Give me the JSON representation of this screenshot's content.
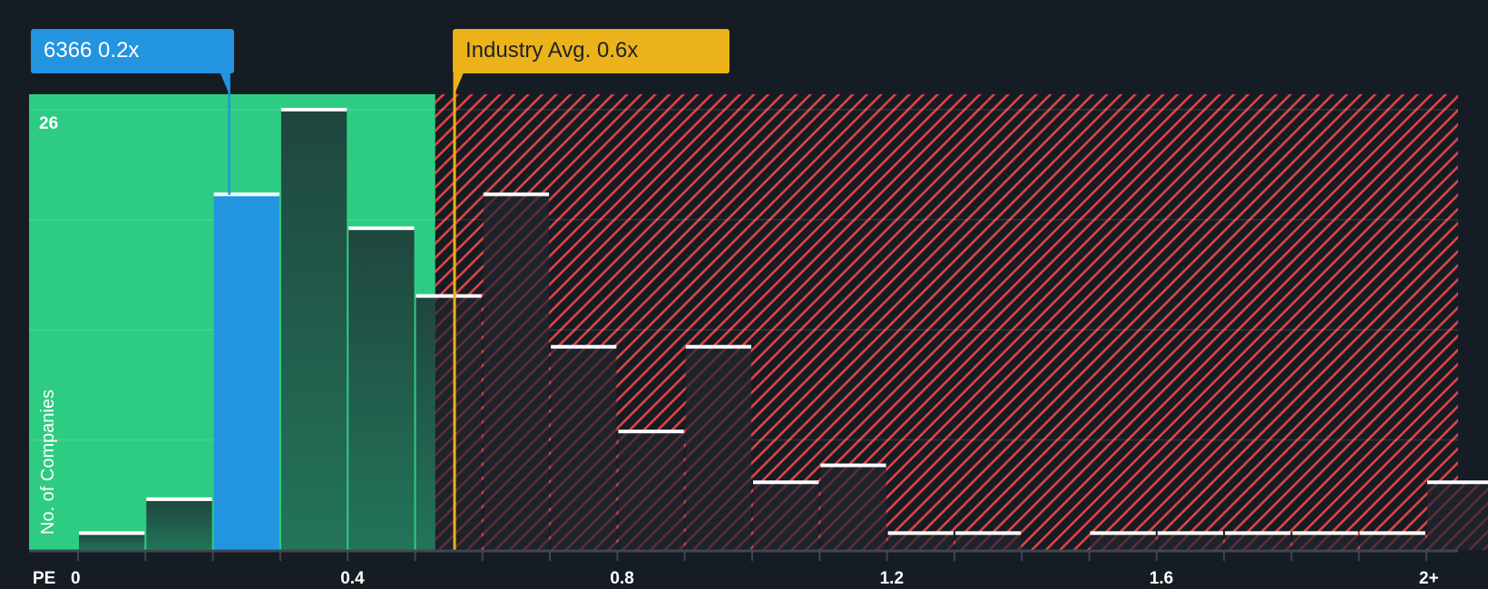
{
  "chart_data": {
    "type": "bar",
    "title": "",
    "xlabel": "PE",
    "ylabel": "No. of Companies",
    "x_tick_labels": [
      "0",
      "0.4",
      "0.8",
      "1.2",
      "1.6",
      "2+"
    ],
    "x_tick_values": [
      0,
      0.4,
      0.8,
      1.2,
      1.6,
      2.0
    ],
    "y_tick_labels": [
      "26"
    ],
    "ylim": [
      0,
      26
    ],
    "grid": true,
    "bin_width": 0.1,
    "categories": [
      "0-0.1",
      "0.1-0.2",
      "0.2-0.3",
      "0.3-0.4",
      "0.4-0.5",
      "0.5-0.6",
      "0.6-0.7",
      "0.7-0.8",
      "0.8-0.9",
      "0.9-1.0",
      "1.0-1.1",
      "1.1-1.2",
      "1.2-1.3",
      "1.3-1.4",
      "1.4-1.5",
      "1.5-1.6",
      "1.6-1.7",
      "1.7-1.8",
      "1.8-1.9",
      "1.9-2.0",
      "2+"
    ],
    "values": [
      1,
      3,
      21,
      26,
      19,
      15,
      21,
      12,
      7,
      12,
      4,
      5,
      1,
      1,
      0,
      1,
      1,
      1,
      1,
      1,
      4
    ],
    "highlight_bin_index": 2,
    "fair_zone_upper": 0.53,
    "company": {
      "ticker": "6366",
      "value": 0.2,
      "label": "6366 0.2x"
    },
    "industry_avg": {
      "value": 0.56,
      "label": "Industry Avg. 0.6x"
    }
  },
  "colors": {
    "background": "#161c24",
    "fair_zone": "#2ecc83",
    "overvalued_hatch": "#e04444",
    "company": "#2394df",
    "industry": "#ebb21a",
    "bar_in_green": "#1f4c40",
    "bar_in_red": "#1e222b"
  },
  "labels": {
    "pe": "PE",
    "y_title": "No. of Companies",
    "y_top": "26"
  }
}
